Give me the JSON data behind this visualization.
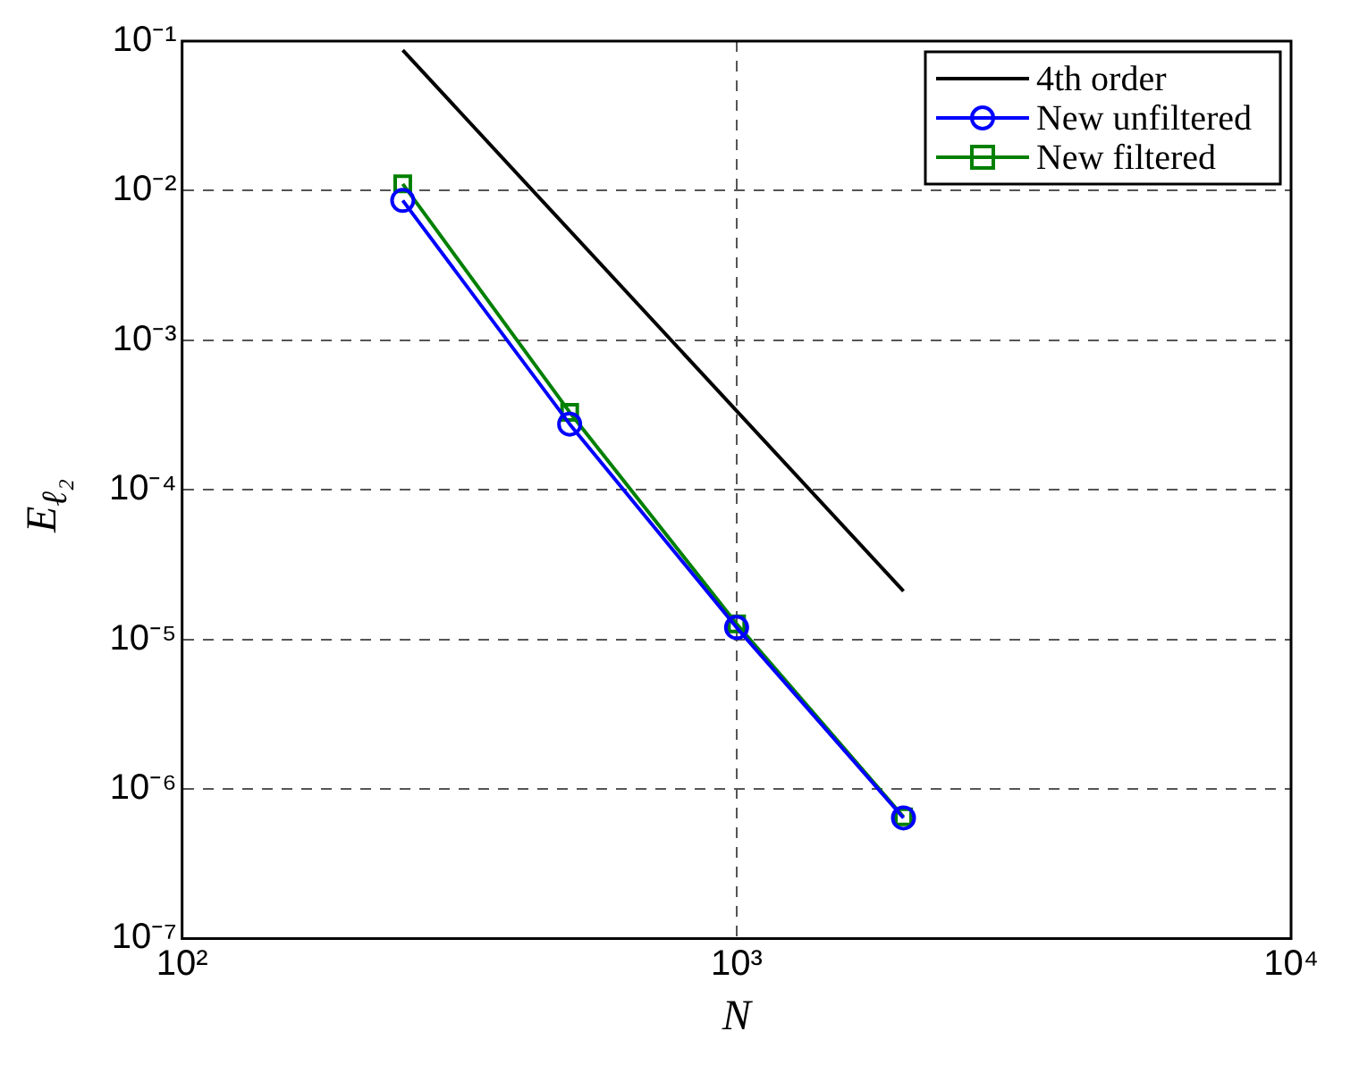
{
  "chart_data": {
    "type": "line",
    "xlabel": "N",
    "ylabel": "E$_{ℓ₂}$",
    "log": "xy",
    "grid": true,
    "legend": "top right",
    "line_style": "solid",
    "xlim": [
      100,
      10000
    ],
    "xticks": [
      {
        "value": 100,
        "label": "10²"
      },
      {
        "value": 1000,
        "label": "10³"
      },
      {
        "value": 10000,
        "label": "10⁴"
      }
    ],
    "ylim": [
      1e-07,
      0.1
    ],
    "yticks": [
      {
        "value": 1e-07,
        "label": "10⁻⁷"
      },
      {
        "value": 1e-06,
        "label": "10⁻⁶"
      },
      {
        "value": 1e-05,
        "label": "10⁻⁵"
      },
      {
        "value": 0.0001,
        "label": "10⁻⁴"
      },
      {
        "value": 0.001,
        "label": "10⁻³"
      },
      {
        "value": 0.01,
        "label": "10⁻²"
      },
      {
        "value": 0.1,
        "label": "10⁻¹"
      }
    ],
    "series": [
      {
        "name": "4th order",
        "color": "#000000",
        "marker": "none",
        "x": [
          250,
          2000
        ],
        "values": [
          0.087,
          2.1e-05
        ]
      },
      {
        "name": "New unfiltered",
        "color": "#0000ff",
        "marker": "circle",
        "x": [
          250,
          500,
          1000,
          2000
        ],
        "values": [
          0.0086,
          0.000275,
          1.2e-05,
          6.4e-07
        ]
      },
      {
        "name": "New filtered",
        "color": "#008000",
        "marker": "square",
        "x": [
          250,
          500,
          1000,
          2000
        ],
        "values": [
          0.0111,
          0.00033,
          1.27e-05,
          6.5e-07
        ]
      }
    ]
  }
}
